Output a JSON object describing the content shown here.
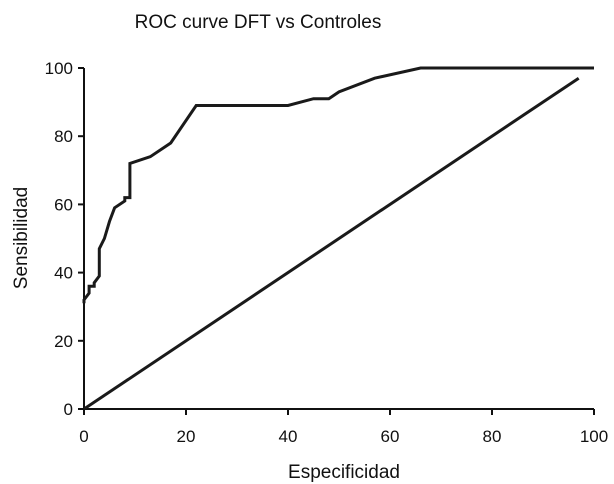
{
  "chart_data": {
    "type": "line",
    "title": "ROC curve DFT vs Controles",
    "xlabel": "Especificidad",
    "ylabel": "Sensibilidad",
    "xlim": [
      0,
      100
    ],
    "ylim": [
      0,
      100
    ],
    "xticks": [
      0,
      20,
      40,
      60,
      80,
      100
    ],
    "yticks": [
      0,
      20,
      40,
      60,
      80,
      100
    ],
    "grid": false,
    "series": [
      {
        "color": "#1a1a1a",
        "x": [
          0,
          0,
          1,
          1,
          2,
          2,
          3,
          3,
          4,
          5,
          6,
          8,
          8,
          9,
          9,
          13,
          17,
          22,
          22,
          40,
          45,
          48,
          50,
          57,
          66,
          100
        ],
        "y": [
          31,
          32,
          34,
          36,
          36,
          37,
          39,
          47,
          50,
          55,
          59,
          61,
          62,
          62,
          72,
          74,
          78,
          89,
          89,
          89,
          91,
          91,
          93,
          97,
          100,
          100
        ]
      },
      {
        "color": "#1a1a1a",
        "x": [
          0,
          97
        ],
        "y": [
          0,
          97
        ]
      }
    ]
  }
}
